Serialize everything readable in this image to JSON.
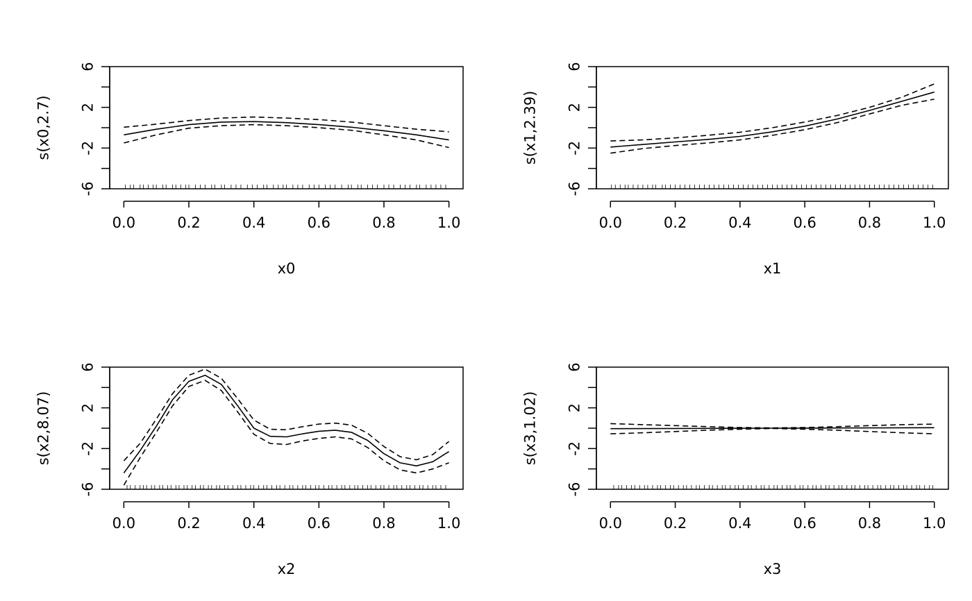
{
  "chart_data": [
    {
      "type": "line",
      "xlabel": "x0",
      "ylabel": "s(x0,2.7)",
      "xlim": [
        0,
        1
      ],
      "ylim": [
        -6,
        6
      ],
      "x_ticks": [
        "0.0",
        "0.2",
        "0.4",
        "0.6",
        "0.8",
        "1.0"
      ],
      "y_ticks": [
        "-6",
        "-2",
        "2",
        "6"
      ],
      "x": [
        0,
        0.1,
        0.2,
        0.3,
        0.4,
        0.5,
        0.6,
        0.7,
        0.8,
        0.9,
        1.0
      ],
      "series": [
        {
          "values": [
            -0.7,
            -0.15,
            0.3,
            0.55,
            0.6,
            0.5,
            0.3,
            0.05,
            -0.3,
            -0.7,
            -1.2
          ],
          "style": "solid"
        },
        {
          "values": [
            0.05,
            0.35,
            0.7,
            0.95,
            1.05,
            0.95,
            0.8,
            0.55,
            0.2,
            -0.15,
            -0.4
          ],
          "style": "dashed"
        },
        {
          "values": [
            -1.5,
            -0.7,
            -0.05,
            0.2,
            0.3,
            0.2,
            0.0,
            -0.25,
            -0.7,
            -1.2,
            -1.95
          ],
          "style": "dashed"
        }
      ],
      "rug": [
        0.005,
        0.02,
        0.03,
        0.05,
        0.06,
        0.075,
        0.09,
        0.1,
        0.12,
        0.13,
        0.15,
        0.16,
        0.175,
        0.19,
        0.2,
        0.22,
        0.235,
        0.25,
        0.27,
        0.28,
        0.3,
        0.31,
        0.33,
        0.345,
        0.36,
        0.38,
        0.395,
        0.41,
        0.43,
        0.44,
        0.46,
        0.475,
        0.49,
        0.5,
        0.52,
        0.535,
        0.55,
        0.57,
        0.585,
        0.6,
        0.62,
        0.635,
        0.65,
        0.67,
        0.69,
        0.7,
        0.72,
        0.73,
        0.75,
        0.765,
        0.78,
        0.8,
        0.815,
        0.83,
        0.85,
        0.865,
        0.88,
        0.9,
        0.91,
        0.93,
        0.945,
        0.96,
        0.975,
        0.99
      ]
    },
    {
      "type": "line",
      "xlabel": "x1",
      "ylabel": "s(x1,2.39)",
      "xlim": [
        0,
        1
      ],
      "ylim": [
        -6,
        6
      ],
      "x_ticks": [
        "0.0",
        "0.2",
        "0.4",
        "0.6",
        "0.8",
        "1.0"
      ],
      "y_ticks": [
        "-6",
        "-2",
        "2",
        "6"
      ],
      "x": [
        0,
        0.1,
        0.2,
        0.3,
        0.4,
        0.5,
        0.6,
        0.7,
        0.8,
        0.9,
        1.0
      ],
      "series": [
        {
          "values": [
            -1.9,
            -1.65,
            -1.4,
            -1.15,
            -0.85,
            -0.4,
            0.15,
            0.85,
            1.7,
            2.6,
            3.5
          ],
          "style": "solid"
        },
        {
          "values": [
            -1.3,
            -1.2,
            -1.0,
            -0.75,
            -0.45,
            0.0,
            0.55,
            1.2,
            2.0,
            3.0,
            4.3
          ],
          "style": "dashed"
        },
        {
          "values": [
            -2.5,
            -2.05,
            -1.75,
            -1.5,
            -1.2,
            -0.75,
            -0.2,
            0.5,
            1.35,
            2.2,
            2.8
          ],
          "style": "dashed"
        }
      ],
      "rug": [
        0.003,
        0.015,
        0.03,
        0.045,
        0.055,
        0.07,
        0.085,
        0.1,
        0.115,
        0.13,
        0.14,
        0.16,
        0.17,
        0.185,
        0.2,
        0.215,
        0.23,
        0.245,
        0.26,
        0.275,
        0.29,
        0.305,
        0.32,
        0.335,
        0.35,
        0.365,
        0.38,
        0.395,
        0.41,
        0.425,
        0.44,
        0.455,
        0.47,
        0.485,
        0.5,
        0.515,
        0.53,
        0.545,
        0.56,
        0.575,
        0.59,
        0.605,
        0.62,
        0.635,
        0.65,
        0.665,
        0.68,
        0.695,
        0.71,
        0.725,
        0.74,
        0.755,
        0.77,
        0.785,
        0.8,
        0.815,
        0.83,
        0.845,
        0.86,
        0.875,
        0.89,
        0.905,
        0.92,
        0.935,
        0.95,
        0.965,
        0.98,
        0.995
      ]
    },
    {
      "type": "line",
      "xlabel": "x2",
      "ylabel": "s(x2,8.07)",
      "xlim": [
        0,
        1
      ],
      "ylim": [
        -6,
        6
      ],
      "x_ticks": [
        "0.0",
        "0.2",
        "0.4",
        "0.6",
        "0.8",
        "1.0"
      ],
      "y_ticks": [
        "-6",
        "-2",
        "2",
        "6"
      ],
      "x": [
        0,
        0.05,
        0.1,
        0.15,
        0.2,
        0.25,
        0.3,
        0.35,
        0.4,
        0.45,
        0.5,
        0.55,
        0.6,
        0.65,
        0.7,
        0.75,
        0.8,
        0.85,
        0.9,
        0.95,
        1.0
      ],
      "series": [
        {
          "values": [
            -4.4,
            -2.2,
            0.2,
            2.8,
            4.6,
            5.2,
            4.3,
            2.2,
            0.0,
            -0.8,
            -0.85,
            -0.55,
            -0.3,
            -0.2,
            -0.4,
            -1.2,
            -2.5,
            -3.4,
            -3.7,
            -3.3,
            -2.3
          ],
          "style": "solid"
        },
        {
          "values": [
            -3.2,
            -1.5,
            0.9,
            3.4,
            5.2,
            5.8,
            4.9,
            2.9,
            0.8,
            -0.1,
            -0.15,
            0.15,
            0.4,
            0.5,
            0.3,
            -0.5,
            -1.8,
            -2.8,
            -3.1,
            -2.6,
            -1.3
          ],
          "style": "dashed"
        },
        {
          "values": [
            -5.6,
            -2.9,
            -0.4,
            2.2,
            4.1,
            4.7,
            3.7,
            1.6,
            -0.6,
            -1.5,
            -1.6,
            -1.25,
            -1.0,
            -0.85,
            -1.05,
            -1.9,
            -3.2,
            -4.1,
            -4.4,
            -4.0,
            -3.4
          ],
          "style": "dashed"
        }
      ],
      "rug": [
        0.01,
        0.02,
        0.035,
        0.05,
        0.06,
        0.07,
        0.085,
        0.095,
        0.11,
        0.12,
        0.135,
        0.145,
        0.16,
        0.17,
        0.185,
        0.195,
        0.21,
        0.22,
        0.235,
        0.245,
        0.26,
        0.27,
        0.285,
        0.295,
        0.31,
        0.32,
        0.335,
        0.35,
        0.36,
        0.375,
        0.39,
        0.4,
        0.415,
        0.43,
        0.44,
        0.455,
        0.47,
        0.48,
        0.495,
        0.51,
        0.52,
        0.535,
        0.55,
        0.56,
        0.575,
        0.59,
        0.6,
        0.615,
        0.63,
        0.64,
        0.655,
        0.67,
        0.68,
        0.695,
        0.71,
        0.72,
        0.735,
        0.75,
        0.76,
        0.775,
        0.79,
        0.8,
        0.815,
        0.83,
        0.84,
        0.855,
        0.87,
        0.88,
        0.895,
        0.91,
        0.92,
        0.935,
        0.95,
        0.96,
        0.975,
        0.99
      ]
    },
    {
      "type": "line",
      "xlabel": "x3",
      "ylabel": "s(x3,1.02)",
      "xlim": [
        0,
        1
      ],
      "ylim": [
        -6,
        6
      ],
      "x_ticks": [
        "0.0",
        "0.2",
        "0.4",
        "0.6",
        "0.8",
        "1.0"
      ],
      "y_ticks": [
        "-6",
        "-2",
        "2",
        "6"
      ],
      "x": [
        0,
        0.1,
        0.2,
        0.3,
        0.4,
        0.5,
        0.6,
        0.7,
        0.8,
        0.9,
        1.0
      ],
      "series": [
        {
          "values": [
            -0.05,
            -0.04,
            -0.03,
            -0.02,
            -0.01,
            0.0,
            0.01,
            0.02,
            0.03,
            0.04,
            0.05
          ],
          "style": "solid"
        },
        {
          "values": [
            0.45,
            0.35,
            0.25,
            0.15,
            0.07,
            0.03,
            0.07,
            0.15,
            0.25,
            0.35,
            0.4
          ],
          "style": "dashed"
        },
        {
          "values": [
            -0.55,
            -0.45,
            -0.33,
            -0.2,
            -0.1,
            -0.03,
            -0.1,
            -0.2,
            -0.33,
            -0.45,
            -0.55
          ],
          "style": "dashed"
        }
      ],
      "rug": [
        0.01,
        0.025,
        0.035,
        0.05,
        0.065,
        0.075,
        0.09,
        0.105,
        0.115,
        0.13,
        0.145,
        0.155,
        0.17,
        0.185,
        0.195,
        0.21,
        0.225,
        0.235,
        0.25,
        0.265,
        0.275,
        0.29,
        0.305,
        0.315,
        0.33,
        0.345,
        0.355,
        0.37,
        0.385,
        0.395,
        0.41,
        0.425,
        0.435,
        0.45,
        0.465,
        0.475,
        0.49,
        0.505,
        0.515,
        0.53,
        0.545,
        0.555,
        0.57,
        0.585,
        0.595,
        0.61,
        0.625,
        0.635,
        0.65,
        0.665,
        0.675,
        0.69,
        0.705,
        0.715,
        0.73,
        0.745,
        0.755,
        0.77,
        0.785,
        0.795,
        0.81,
        0.825,
        0.835,
        0.85,
        0.865,
        0.875,
        0.89,
        0.905,
        0.915,
        0.93,
        0.945,
        0.955,
        0.97,
        0.985,
        0.995
      ]
    }
  ]
}
